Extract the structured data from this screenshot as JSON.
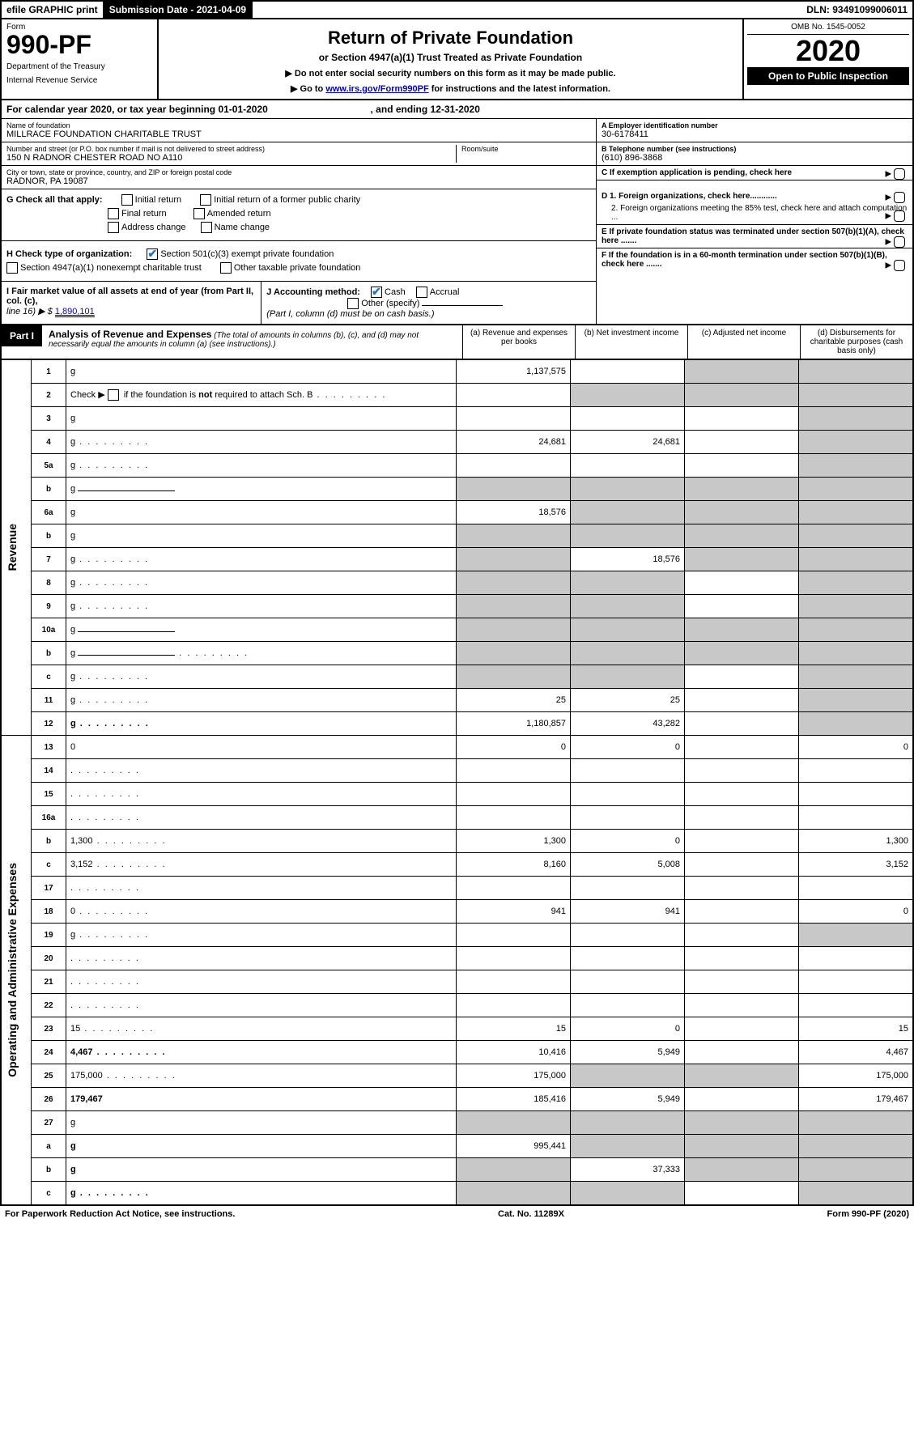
{
  "topbar": {
    "efile": "efile GRAPHIC print",
    "submission": "Submission Date - 2021-04-09",
    "dln": "DLN: 93491099006011"
  },
  "header": {
    "form_label": "Form",
    "form_no": "990-PF",
    "dept1": "Department of the Treasury",
    "dept2": "Internal Revenue Service",
    "title": "Return of Private Foundation",
    "subtitle": "or Section 4947(a)(1) Trust Treated as Private Foundation",
    "note1": "▶ Do not enter social security numbers on this form as it may be made public.",
    "note2_pre": "▶ Go to ",
    "note2_link": "www.irs.gov/Form990PF",
    "note2_post": " for instructions and the latest information.",
    "omb": "OMB No. 1545-0052",
    "year": "2020",
    "open": "Open to Public Inspection"
  },
  "cal": {
    "text_a": "For calendar year 2020, or tax year beginning 01-01-2020",
    "text_b": ", and ending 12-31-2020"
  },
  "info": {
    "name_lbl": "Name of foundation",
    "name_val": "MILLRACE FOUNDATION CHARITABLE TRUST",
    "addr_lbl": "Number and street (or P.O. box number if mail is not delivered to street address)",
    "addr_val": "150 N RADNOR CHESTER ROAD NO A110",
    "room_lbl": "Room/suite",
    "city_lbl": "City or town, state or province, country, and ZIP or foreign postal code",
    "city_val": "RADNOR, PA  19087",
    "a_lbl": "A Employer identification number",
    "a_val": "30-6178411",
    "b_lbl": "B Telephone number (see instructions)",
    "b_val": "(610) 896-3868",
    "c_lbl": "C If exemption application is pending, check here",
    "d1": "D 1. Foreign organizations, check here............",
    "d2": "2. Foreign organizations meeting the 85% test, check here and attach computation ...",
    "e": "E  If private foundation status was terminated under section 507(b)(1)(A), check here .......",
    "f": "F  If the foundation is in a 60-month termination under section 507(b)(1)(B), check here .......",
    "g_lbl": "G Check all that apply:",
    "g_opts": [
      "Initial return",
      "Initial return of a former public charity",
      "Final return",
      "Amended return",
      "Address change",
      "Name change"
    ],
    "h_lbl": "H Check type of organization:",
    "h1": "Section 501(c)(3) exempt private foundation",
    "h2": "Section 4947(a)(1) nonexempt charitable trust",
    "h3": "Other taxable private foundation",
    "i_lbl": "I Fair market value of all assets at end of year (from Part II, col. (c),",
    "i_line": "line 16) ▶ $",
    "i_val": "1,890,101",
    "j_lbl": "J Accounting method:",
    "j_cash": "Cash",
    "j_accr": "Accrual",
    "j_other": "Other (specify)",
    "j_note": "(Part I, column (d) must be on cash basis.)"
  },
  "part1": {
    "badge": "Part I",
    "title": "Analysis of Revenue and Expenses",
    "note": "(The total of amounts in columns (b), (c), and (d) may not necessarily equal the amounts in column (a) (see instructions).)",
    "cols": {
      "a": "(a)   Revenue and expenses per books",
      "b": "(b)  Net investment income",
      "c": "(c)  Adjusted net income",
      "d": "(d)  Disbursements for charitable purposes (cash basis only)"
    }
  },
  "vlabels": {
    "rev": "Revenue",
    "exp": "Operating and Administrative Expenses"
  },
  "rows": [
    {
      "n": "1",
      "d": "g",
      "a": "1,137,575",
      "b": "",
      "c": "g"
    },
    {
      "n": "2",
      "d": "g",
      "a": "",
      "b": "g",
      "c": "g",
      "dots": true
    },
    {
      "n": "3",
      "d": "g",
      "a": "",
      "b": "",
      "c": ""
    },
    {
      "n": "4",
      "d": "g",
      "a": "24,681",
      "b": "24,681",
      "c": "",
      "dots": true
    },
    {
      "n": "5a",
      "d": "g",
      "a": "",
      "b": "",
      "c": "",
      "dots": true
    },
    {
      "n": "b",
      "d": "g",
      "a": "g",
      "b": "g",
      "c": "g",
      "inlinebox": true
    },
    {
      "n": "6a",
      "d": "g",
      "a": "18,576",
      "b": "g",
      "c": "g"
    },
    {
      "n": "b",
      "d": "g",
      "a": "g",
      "b": "g",
      "c": "g"
    },
    {
      "n": "7",
      "d": "g",
      "a": "g",
      "b": "18,576",
      "c": "g",
      "dots": true
    },
    {
      "n": "8",
      "d": "g",
      "a": "g",
      "b": "g",
      "c": "",
      "dots": true
    },
    {
      "n": "9",
      "d": "g",
      "a": "g",
      "b": "g",
      "c": "",
      "dots": true
    },
    {
      "n": "10a",
      "d": "g",
      "a": "g",
      "b": "g",
      "c": "g",
      "inlinebox": true
    },
    {
      "n": "b",
      "d": "g",
      "a": "g",
      "b": "g",
      "c": "g",
      "inlinebox": true,
      "dots": true
    },
    {
      "n": "c",
      "d": "g",
      "a": "g",
      "b": "g",
      "c": "",
      "dots": true
    },
    {
      "n": "11",
      "d": "g",
      "a": "25",
      "b": "25",
      "c": "",
      "dots": true
    },
    {
      "n": "12",
      "d": "g",
      "a": "1,180,857",
      "b": "43,282",
      "c": "",
      "bold": true,
      "dots": true
    }
  ],
  "rows2": [
    {
      "n": "13",
      "d": "0",
      "a": "0",
      "b": "0",
      "c": ""
    },
    {
      "n": "14",
      "d": "",
      "a": "",
      "b": "",
      "c": "",
      "dots": true
    },
    {
      "n": "15",
      "d": "",
      "a": "",
      "b": "",
      "c": "",
      "dots": true
    },
    {
      "n": "16a",
      "d": "",
      "a": "",
      "b": "",
      "c": "",
      "dots": true
    },
    {
      "n": "b",
      "d": "1,300",
      "a": "1,300",
      "b": "0",
      "c": "",
      "dots": true
    },
    {
      "n": "c",
      "d": "3,152",
      "a": "8,160",
      "b": "5,008",
      "c": "",
      "dots": true
    },
    {
      "n": "17",
      "d": "",
      "a": "",
      "b": "",
      "c": "",
      "dots": true
    },
    {
      "n": "18",
      "d": "0",
      "a": "941",
      "b": "941",
      "c": "",
      "dots": true
    },
    {
      "n": "19",
      "d": "g",
      "a": "",
      "b": "",
      "c": "",
      "dots": true
    },
    {
      "n": "20",
      "d": "",
      "a": "",
      "b": "",
      "c": "",
      "dots": true
    },
    {
      "n": "21",
      "d": "",
      "a": "",
      "b": "",
      "c": "",
      "dots": true
    },
    {
      "n": "22",
      "d": "",
      "a": "",
      "b": "",
      "c": "",
      "dots": true
    },
    {
      "n": "23",
      "d": "15",
      "a": "15",
      "b": "0",
      "c": "",
      "dots": true
    },
    {
      "n": "24",
      "d": "4,467",
      "a": "10,416",
      "b": "5,949",
      "c": "",
      "bold": true,
      "dots": true
    },
    {
      "n": "25",
      "d": "175,000",
      "a": "175,000",
      "b": "g",
      "c": "g",
      "dots": true
    },
    {
      "n": "26",
      "d": "179,467",
      "a": "185,416",
      "b": "5,949",
      "c": "",
      "bold": true
    },
    {
      "n": "27",
      "d": "g",
      "a": "g",
      "b": "g",
      "c": "g"
    },
    {
      "n": "a",
      "d": "g",
      "a": "995,441",
      "b": "g",
      "c": "g",
      "bold": true
    },
    {
      "n": "b",
      "d": "g",
      "a": "g",
      "b": "37,333",
      "c": "g",
      "bold": true
    },
    {
      "n": "c",
      "d": "g",
      "a": "g",
      "b": "g",
      "c": "",
      "bold": true,
      "dots": true
    }
  ],
  "footer": {
    "left": "For Paperwork Reduction Act Notice, see instructions.",
    "mid": "Cat. No. 11289X",
    "right": "Form 990-PF (2020)"
  }
}
